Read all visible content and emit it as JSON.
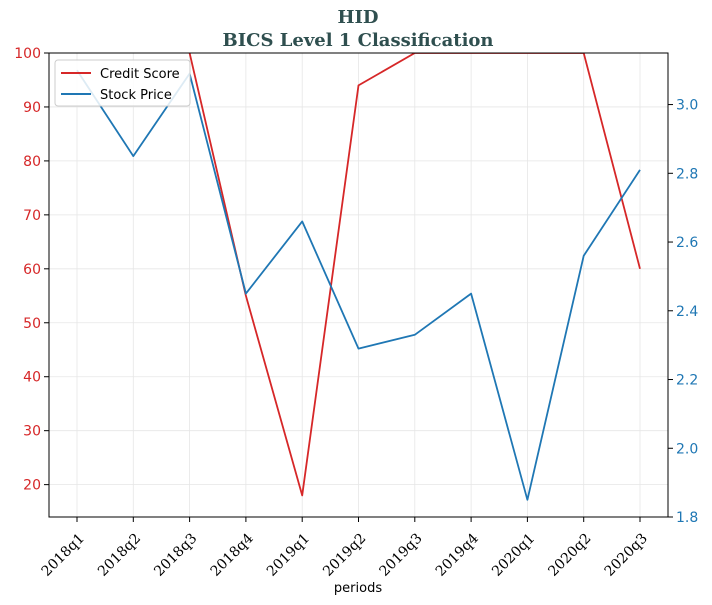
{
  "chart_data": {
    "type": "line",
    "title": "HID",
    "subtitle": "BICS Level 1 Classification",
    "xlabel": "periods",
    "categories": [
      "2018q1",
      "2018q2",
      "2018q3",
      "2018q4",
      "2019q1",
      "2019q2",
      "2019q3",
      "2019q4",
      "2020q1",
      "2020q2",
      "2020q3"
    ],
    "series": [
      {
        "name": "Credit Score",
        "axis": "left",
        "color": "#d62728",
        "values": [
          null,
          null,
          100,
          55,
          18,
          94,
          100,
          100,
          100,
          100,
          60
        ]
      },
      {
        "name": "Stock Price",
        "axis": "right",
        "color": "#1f77b4",
        "values": [
          3.1,
          2.85,
          3.09,
          2.45,
          2.66,
          2.29,
          2.33,
          2.45,
          1.85,
          2.56,
          2.81
        ]
      }
    ],
    "y_left": {
      "ylim": [
        14,
        100
      ],
      "ticks": [
        20,
        30,
        40,
        50,
        60,
        70,
        80,
        90,
        100
      ],
      "color": "#d62728"
    },
    "y_right": {
      "ylim": [
        1.8,
        3.15
      ],
      "ticks": [
        "1.8",
        "2.0",
        "2.2",
        "2.4",
        "2.6",
        "2.8",
        "3.0"
      ],
      "color": "#1f77b4"
    },
    "grid": true,
    "legend": "top-left"
  }
}
